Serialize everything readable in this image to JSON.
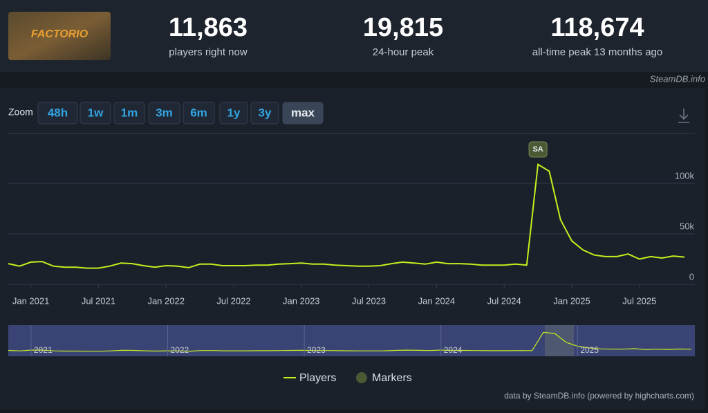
{
  "header": {
    "logo_text": "FACTORIO",
    "stats": [
      {
        "value": "11,863",
        "label": "players right now"
      },
      {
        "value": "19,815",
        "label": "24-hour peak"
      },
      {
        "value": "118,674",
        "label": "all-time peak 13 months ago"
      }
    ],
    "watermark": "SteamDB.info"
  },
  "zoom": {
    "label": "Zoom",
    "buttons": [
      "48h",
      "1w",
      "1m",
      "3m",
      "6m",
      "1y",
      "3y",
      "max"
    ],
    "active": "max"
  },
  "chart_data": {
    "type": "line",
    "x": [
      "2020-11",
      "2020-12",
      "2021-01",
      "2021-02",
      "2021-03",
      "2021-04",
      "2021-05",
      "2021-06",
      "2021-07",
      "2021-08",
      "2021-09",
      "2021-10",
      "2021-11",
      "2021-12",
      "2022-01",
      "2022-02",
      "2022-03",
      "2022-04",
      "2022-05",
      "2022-06",
      "2022-07",
      "2022-08",
      "2022-09",
      "2022-10",
      "2022-11",
      "2022-12",
      "2023-01",
      "2023-02",
      "2023-03",
      "2023-04",
      "2023-05",
      "2023-06",
      "2023-07",
      "2023-08",
      "2023-09",
      "2023-10",
      "2023-11",
      "2023-12",
      "2024-01",
      "2024-02",
      "2024-03",
      "2024-04",
      "2024-05",
      "2024-06",
      "2024-07",
      "2024-08",
      "2024-09",
      "2024-10",
      "2024-11",
      "2024-12",
      "2025-01",
      "2025-02",
      "2025-03",
      "2025-04",
      "2025-05",
      "2025-06",
      "2025-07",
      "2025-08",
      "2025-09",
      "2025-10",
      "2025-11"
    ],
    "series": [
      {
        "name": "Players",
        "color": "#c8ee1e",
        "values": [
          20500,
          18000,
          22000,
          22500,
          18000,
          17000,
          17000,
          16000,
          16000,
          18000,
          21000,
          20500,
          18500,
          17000,
          18500,
          18000,
          16500,
          20000,
          20000,
          18500,
          18500,
          18500,
          19000,
          19000,
          20000,
          20500,
          21000,
          20000,
          20000,
          19000,
          18500,
          18000,
          18000,
          18500,
          20500,
          22000,
          21000,
          20000,
          22000,
          20500,
          20500,
          20000,
          19000,
          19000,
          19000,
          20000,
          19000,
          118674,
          112000,
          64000,
          43000,
          34000,
          29000,
          27500,
          27500,
          30000,
          25000,
          27500,
          26000,
          28000,
          27000
        ]
      }
    ],
    "markers": {
      "name": "Markers",
      "color": "#4a5a35",
      "points": [
        {
          "x": "2024-10",
          "label": "SA"
        }
      ]
    },
    "xlim": [
      "2020-11",
      "2025-11"
    ],
    "xticks": [
      {
        "value": "2021-01",
        "label": "Jan 2021"
      },
      {
        "value": "2021-07",
        "label": "Jul 2021"
      },
      {
        "value": "2022-01",
        "label": "Jan 2022"
      },
      {
        "value": "2022-07",
        "label": "Jul 2022"
      },
      {
        "value": "2023-01",
        "label": "Jan 2023"
      },
      {
        "value": "2023-07",
        "label": "Jul 2023"
      },
      {
        "value": "2024-01",
        "label": "Jan 2024"
      },
      {
        "value": "2024-07",
        "label": "Jul 2024"
      },
      {
        "value": "2025-01",
        "label": "Jan 2025"
      },
      {
        "value": "2025-07",
        "label": "Jul 2025"
      }
    ],
    "ylim": [
      0,
      150000
    ],
    "yticks": [
      0,
      {
        "value": 50000,
        "label": "50k"
      },
      {
        "value": 100000,
        "label": "100k"
      }
    ],
    "grid": true,
    "navigator_labels": [
      {
        "value": "2021-01",
        "label": "2021"
      },
      {
        "value": "2022-01",
        "label": "2022"
      },
      {
        "value": "2023-01",
        "label": "2023"
      },
      {
        "value": "2024-01",
        "label": "2024"
      },
      {
        "value": "2025-01",
        "label": "2025"
      }
    ],
    "credits": "data by SteamDB.info (powered by highcharts.com)"
  }
}
